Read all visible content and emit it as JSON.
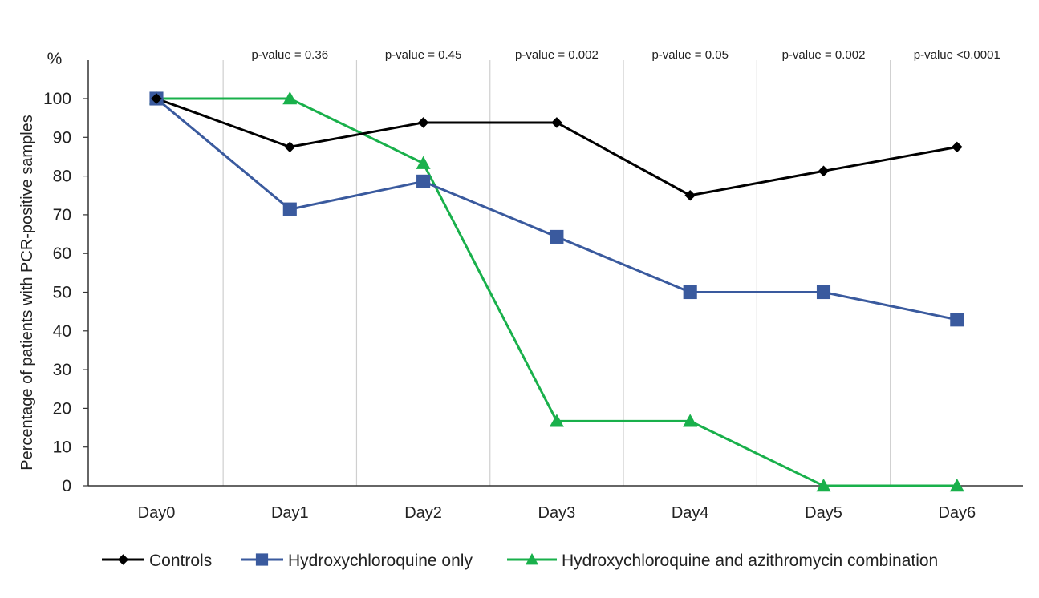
{
  "chart_data": {
    "type": "line",
    "title": "",
    "xlabel": "",
    "ylabel": "Percentage of patients with PCR-positive samples",
    "y_unit": "%",
    "ylim": [
      0,
      100
    ],
    "yticks": [
      0,
      10,
      20,
      30,
      40,
      50,
      60,
      70,
      80,
      90,
      100
    ],
    "categories": [
      "Day0",
      "Day1",
      "Day2",
      "Day3",
      "Day4",
      "Day5",
      "Day6"
    ],
    "p_values": [
      "",
      "p-value = 0.36",
      "p-value = 0.45",
      "p-value = 0.002",
      "p-value = 0.05",
      "p-value = 0.002",
      "p-value <0.0001"
    ],
    "grid": "vertical",
    "legend": "bottom",
    "series": [
      {
        "name": "Controls",
        "values": [
          100,
          87.5,
          93.8,
          93.8,
          75,
          81.3,
          87.5
        ],
        "color": "#000000",
        "marker": "diamond"
      },
      {
        "name": "Hydroxychloroquine only",
        "values": [
          100,
          71.4,
          78.6,
          64.3,
          50,
          50,
          42.9
        ],
        "color": "#3a5a9e",
        "marker": "square"
      },
      {
        "name": "Hydroxychloroquine and azithromycin combination",
        "values": [
          100,
          100,
          83.3,
          16.7,
          16.7,
          0,
          0
        ],
        "color": "#19b04b",
        "marker": "triangle"
      }
    ]
  }
}
